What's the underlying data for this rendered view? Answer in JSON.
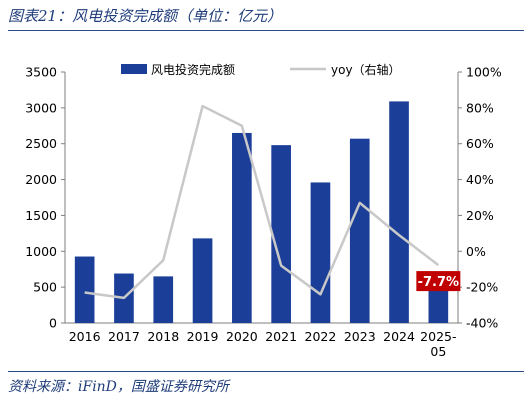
{
  "header": {
    "title": "图表21：风电投资完成额（单位：亿元）"
  },
  "footer": {
    "source": "资料来源：iFinD，国盛证券研究所"
  },
  "colors": {
    "bar": "#1b3f99",
    "line": "#c8c8c8",
    "highlight": "#c00000"
  },
  "chart_data": {
    "type": "bar+line",
    "categories": [
      "2016",
      "2017",
      "2018",
      "2019",
      "2020",
      "2021",
      "2022",
      "2023",
      "2024",
      "2025-05"
    ],
    "category_lines": [
      [
        "2016"
      ],
      [
        "2017"
      ],
      [
        "2018"
      ],
      [
        "2019"
      ],
      [
        "2020"
      ],
      [
        "2021"
      ],
      [
        "2022"
      ],
      [
        "2023"
      ],
      [
        "2024"
      ],
      [
        "2025-",
        "05"
      ]
    ],
    "series": [
      {
        "name": "风电投资完成额",
        "type": "bar",
        "axis": "left",
        "values": [
          927,
          690,
          650,
          1180,
          2650,
          2480,
          1960,
          2570,
          3090,
          550
        ]
      },
      {
        "name": "yoy（右轴）",
        "type": "line",
        "axis": "right",
        "unit": "%",
        "values": [
          -23,
          -26,
          -5,
          81,
          70,
          -8,
          -24,
          27,
          9,
          -7.7
        ]
      }
    ],
    "ylim_left": [
      0,
      3500
    ],
    "yticks_left": [
      "0",
      "500",
      "1000",
      "1500",
      "2000",
      "2500",
      "3000",
      "3500"
    ],
    "ylim_right": [
      -40,
      100
    ],
    "yticks_right": [
      "-40%",
      "-20%",
      "0%",
      "20%",
      "40%",
      "60%",
      "80%",
      "100%"
    ],
    "annotation": {
      "label": "-7.7%",
      "category": "2025-05"
    },
    "legend": "top",
    "grid": false
  }
}
